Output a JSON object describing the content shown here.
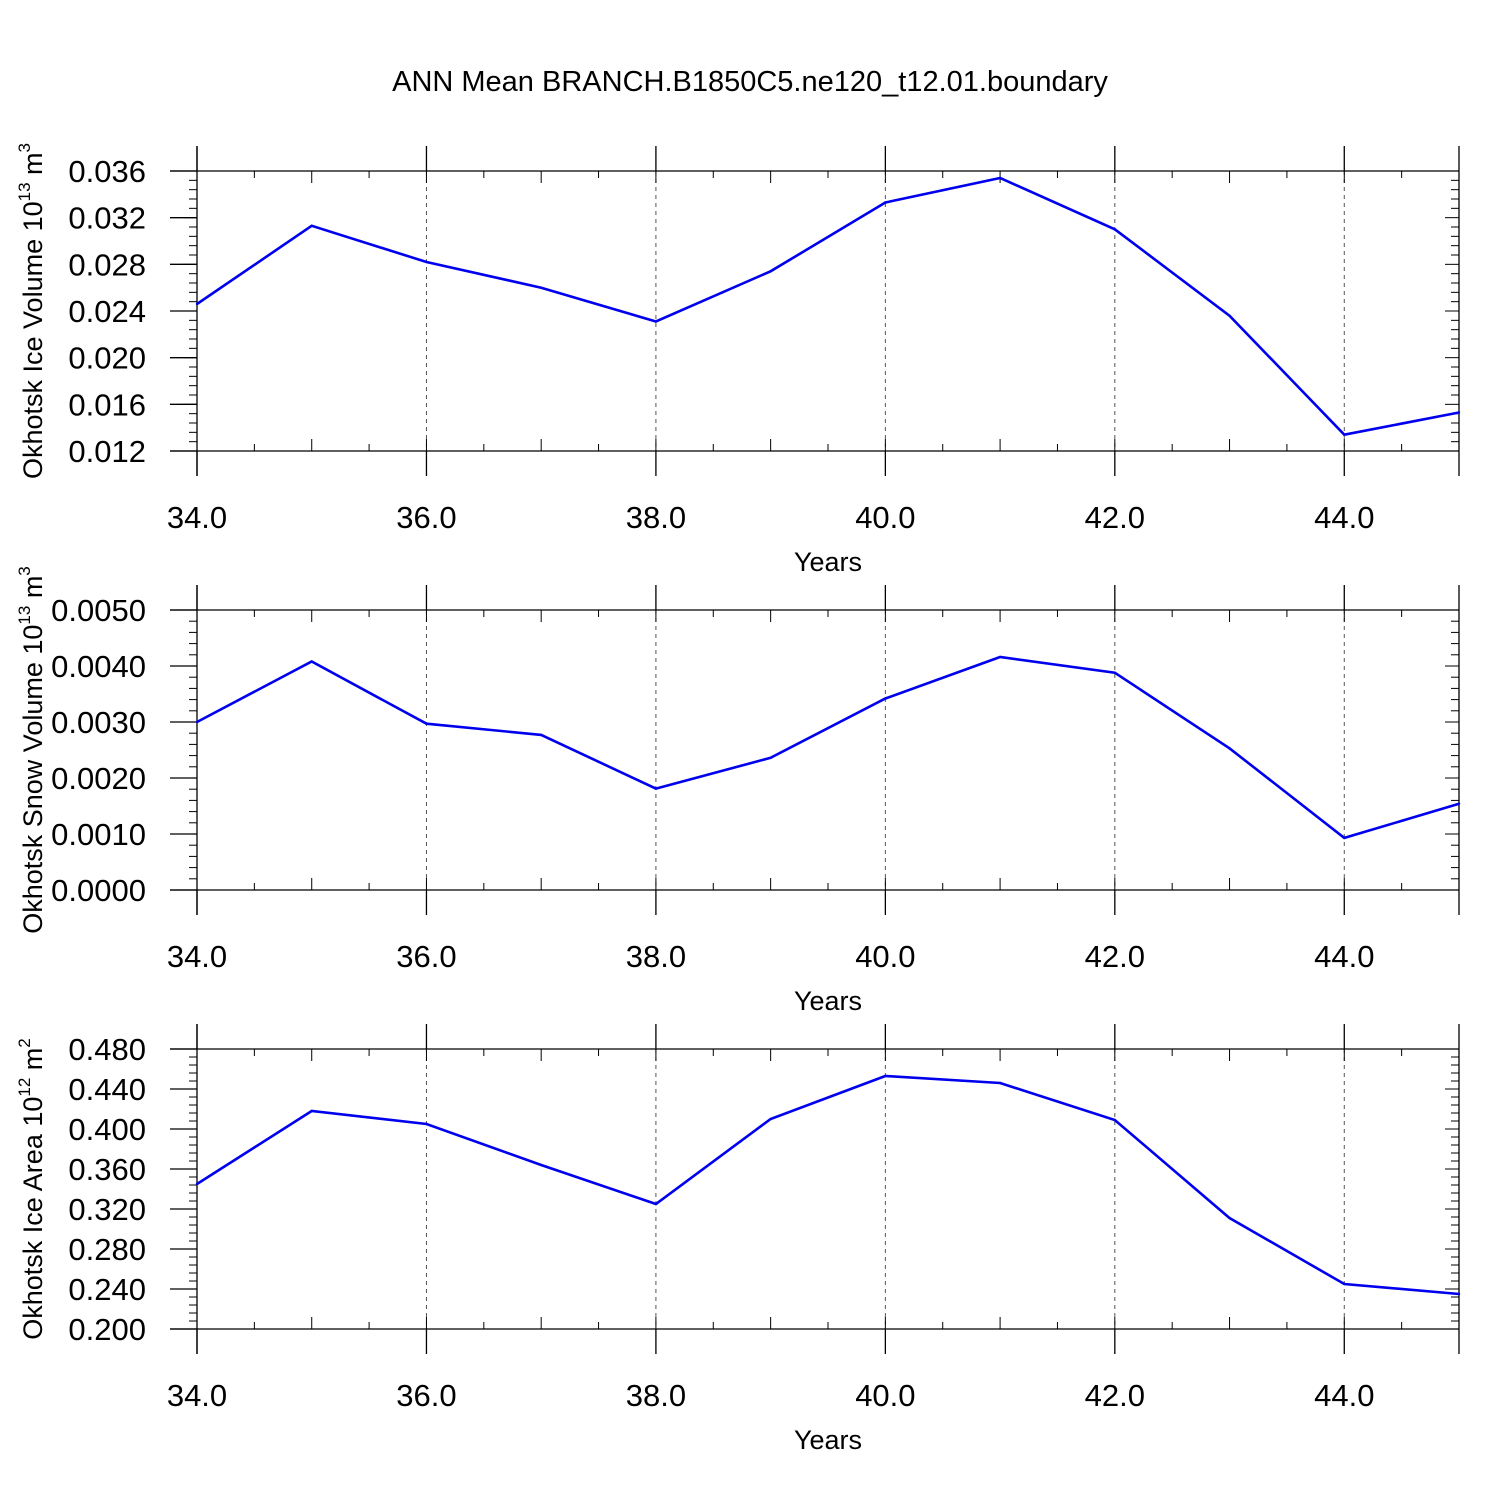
{
  "title": "ANN Mean BRANCH.B1850C5.ne120_t12.01.boundary",
  "colors": {
    "line": "#0000ee",
    "axis": "#000000",
    "grid": "#555555"
  },
  "chart_data": [
    {
      "type": "line",
      "title": "",
      "xlabel": "Years",
      "ylabel": "Okhotsk Ice Volume 10",
      "ylabel_exp": "13",
      "ylabel_unit": " m",
      "ylabel_unit_exp": "3",
      "xlim": [
        34,
        45
      ],
      "ylim": [
        0.012,
        0.036
      ],
      "x_ticks": [
        "34.0",
        "36.0",
        "38.0",
        "40.0",
        "42.0",
        "44.0"
      ],
      "y_ticks": [
        "0.012",
        "0.016",
        "0.020",
        "0.024",
        "0.028",
        "0.032",
        "0.036"
      ],
      "x_grid": "vertical dashed at major ticks",
      "series": [
        {
          "x": [
            34,
            35,
            36,
            37,
            38,
            39,
            40,
            41,
            42,
            43,
            44,
            45
          ],
          "values": [
            0.0246,
            0.0313,
            0.0282,
            0.026,
            0.0231,
            0.0274,
            0.0333,
            0.0354,
            0.031,
            0.0236,
            0.0134,
            0.0153
          ]
        }
      ]
    },
    {
      "type": "line",
      "title": "",
      "xlabel": "Years",
      "ylabel": "Okhotsk Snow Volume 10",
      "ylabel_exp": "13",
      "ylabel_unit": " m",
      "ylabel_unit_exp": "3",
      "xlim": [
        34,
        45
      ],
      "ylim": [
        0.0,
        0.005
      ],
      "x_ticks": [
        "34.0",
        "36.0",
        "38.0",
        "40.0",
        "42.0",
        "44.0"
      ],
      "y_ticks": [
        "0.0000",
        "0.0010",
        "0.0020",
        "0.0030",
        "0.0040",
        "0.0050"
      ],
      "x_grid": "vertical dashed at major ticks",
      "series": [
        {
          "x": [
            34,
            35,
            36,
            37,
            38,
            39,
            40,
            41,
            42,
            43,
            44,
            45
          ],
          "values": [
            0.003,
            0.00408,
            0.00297,
            0.00277,
            0.00181,
            0.00236,
            0.00342,
            0.00416,
            0.00388,
            0.00253,
            0.00093,
            0.00154
          ]
        }
      ]
    },
    {
      "type": "line",
      "title": "",
      "xlabel": "Years",
      "ylabel": "Okhotsk Ice Area 10",
      "ylabel_exp": "12",
      "ylabel_unit": " m",
      "ylabel_unit_exp": "2",
      "xlim": [
        34,
        45
      ],
      "ylim": [
        0.2,
        0.48
      ],
      "x_ticks": [
        "34.0",
        "36.0",
        "38.0",
        "40.0",
        "42.0",
        "44.0"
      ],
      "y_ticks": [
        "0.200",
        "0.240",
        "0.280",
        "0.320",
        "0.360",
        "0.400",
        "0.440",
        "0.480"
      ],
      "x_grid": "vertical dashed at major ticks",
      "series": [
        {
          "x": [
            34,
            35,
            36,
            37,
            38,
            39,
            40,
            41,
            42,
            43,
            44,
            45
          ],
          "values": [
            0.345,
            0.418,
            0.405,
            0.364,
            0.325,
            0.41,
            0.453,
            0.446,
            0.409,
            0.311,
            0.245,
            0.235
          ]
        }
      ]
    }
  ]
}
